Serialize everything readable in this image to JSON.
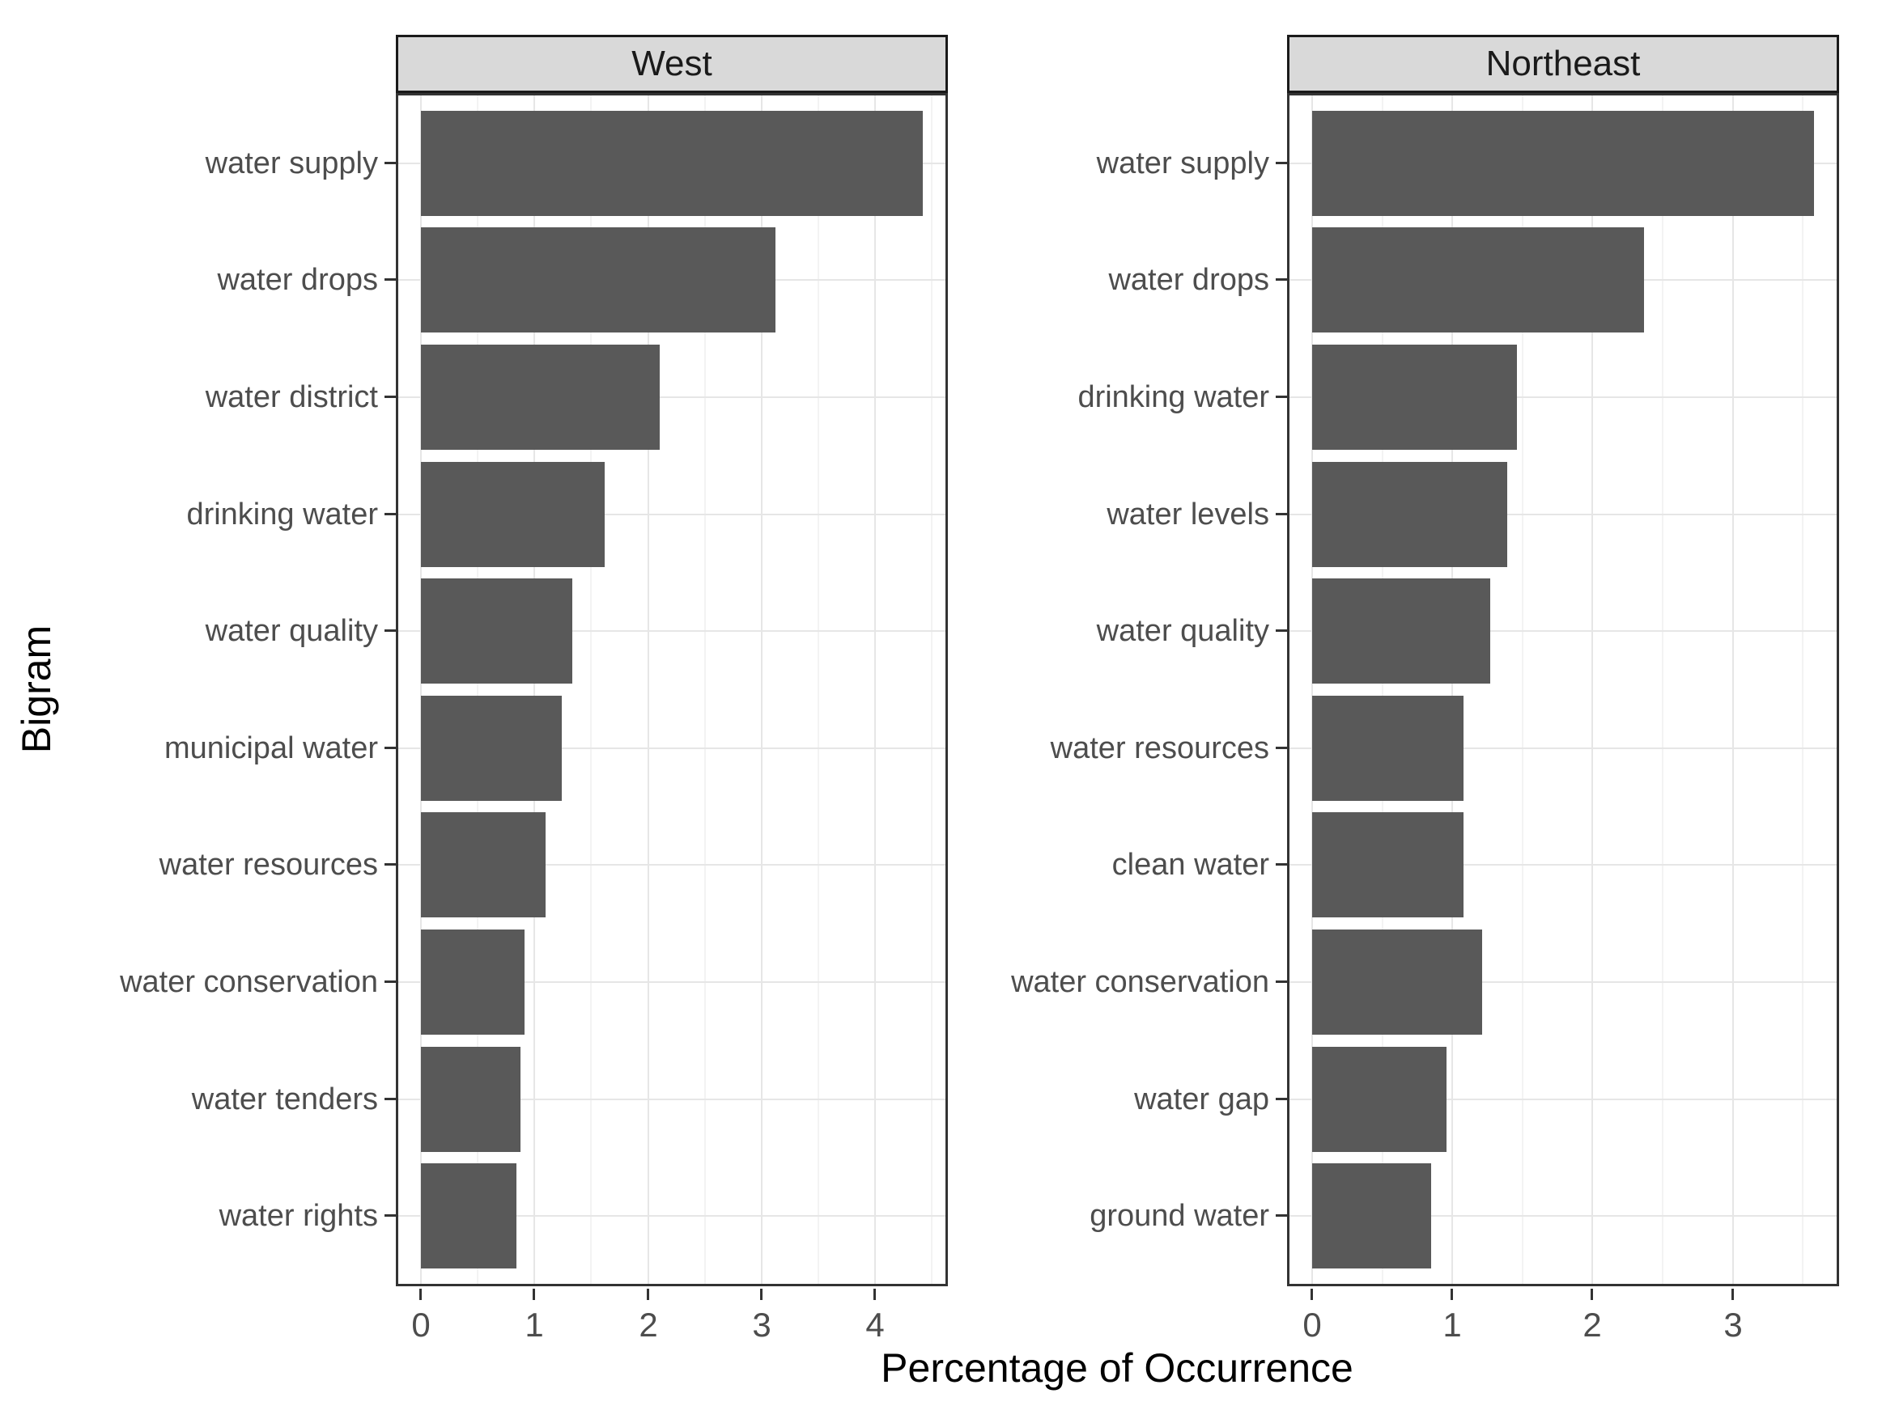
{
  "axes": {
    "y_title": "Bigram",
    "x_title": "Percentage of Occurrence"
  },
  "chart_data": {
    "type": "bar",
    "orientation": "horizontal",
    "xlabel": "Percentage of Occurrence",
    "ylabel": "Bigram",
    "grid": "major+minor",
    "bar_color": "#595959",
    "strip_bg": "#D9D9D9",
    "xlim_expansion_mult": 0.05,
    "facets": [
      {
        "title": "West",
        "categories": [
          "water supply",
          "water drops",
          "water district",
          "drinking water",
          "water quality",
          "municipal water",
          "water resources",
          "water conservation",
          "water tenders",
          "water rights"
        ],
        "values": [
          4.42,
          3.12,
          2.1,
          1.62,
          1.33,
          1.24,
          1.1,
          0.91,
          0.88,
          0.84
        ],
        "x_ticks": [
          0,
          1,
          2,
          3,
          4
        ]
      },
      {
        "title": "Northeast",
        "categories": [
          "water supply",
          "water drops",
          "drinking water",
          "water levels",
          "water quality",
          "water resources",
          "clean water",
          "water conservation",
          "water gap",
          "ground water"
        ],
        "values": [
          3.58,
          2.37,
          1.46,
          1.39,
          1.27,
          1.08,
          1.08,
          1.21,
          0.96,
          0.85
        ],
        "x_ticks": [
          0,
          1,
          2,
          3
        ]
      }
    ]
  }
}
